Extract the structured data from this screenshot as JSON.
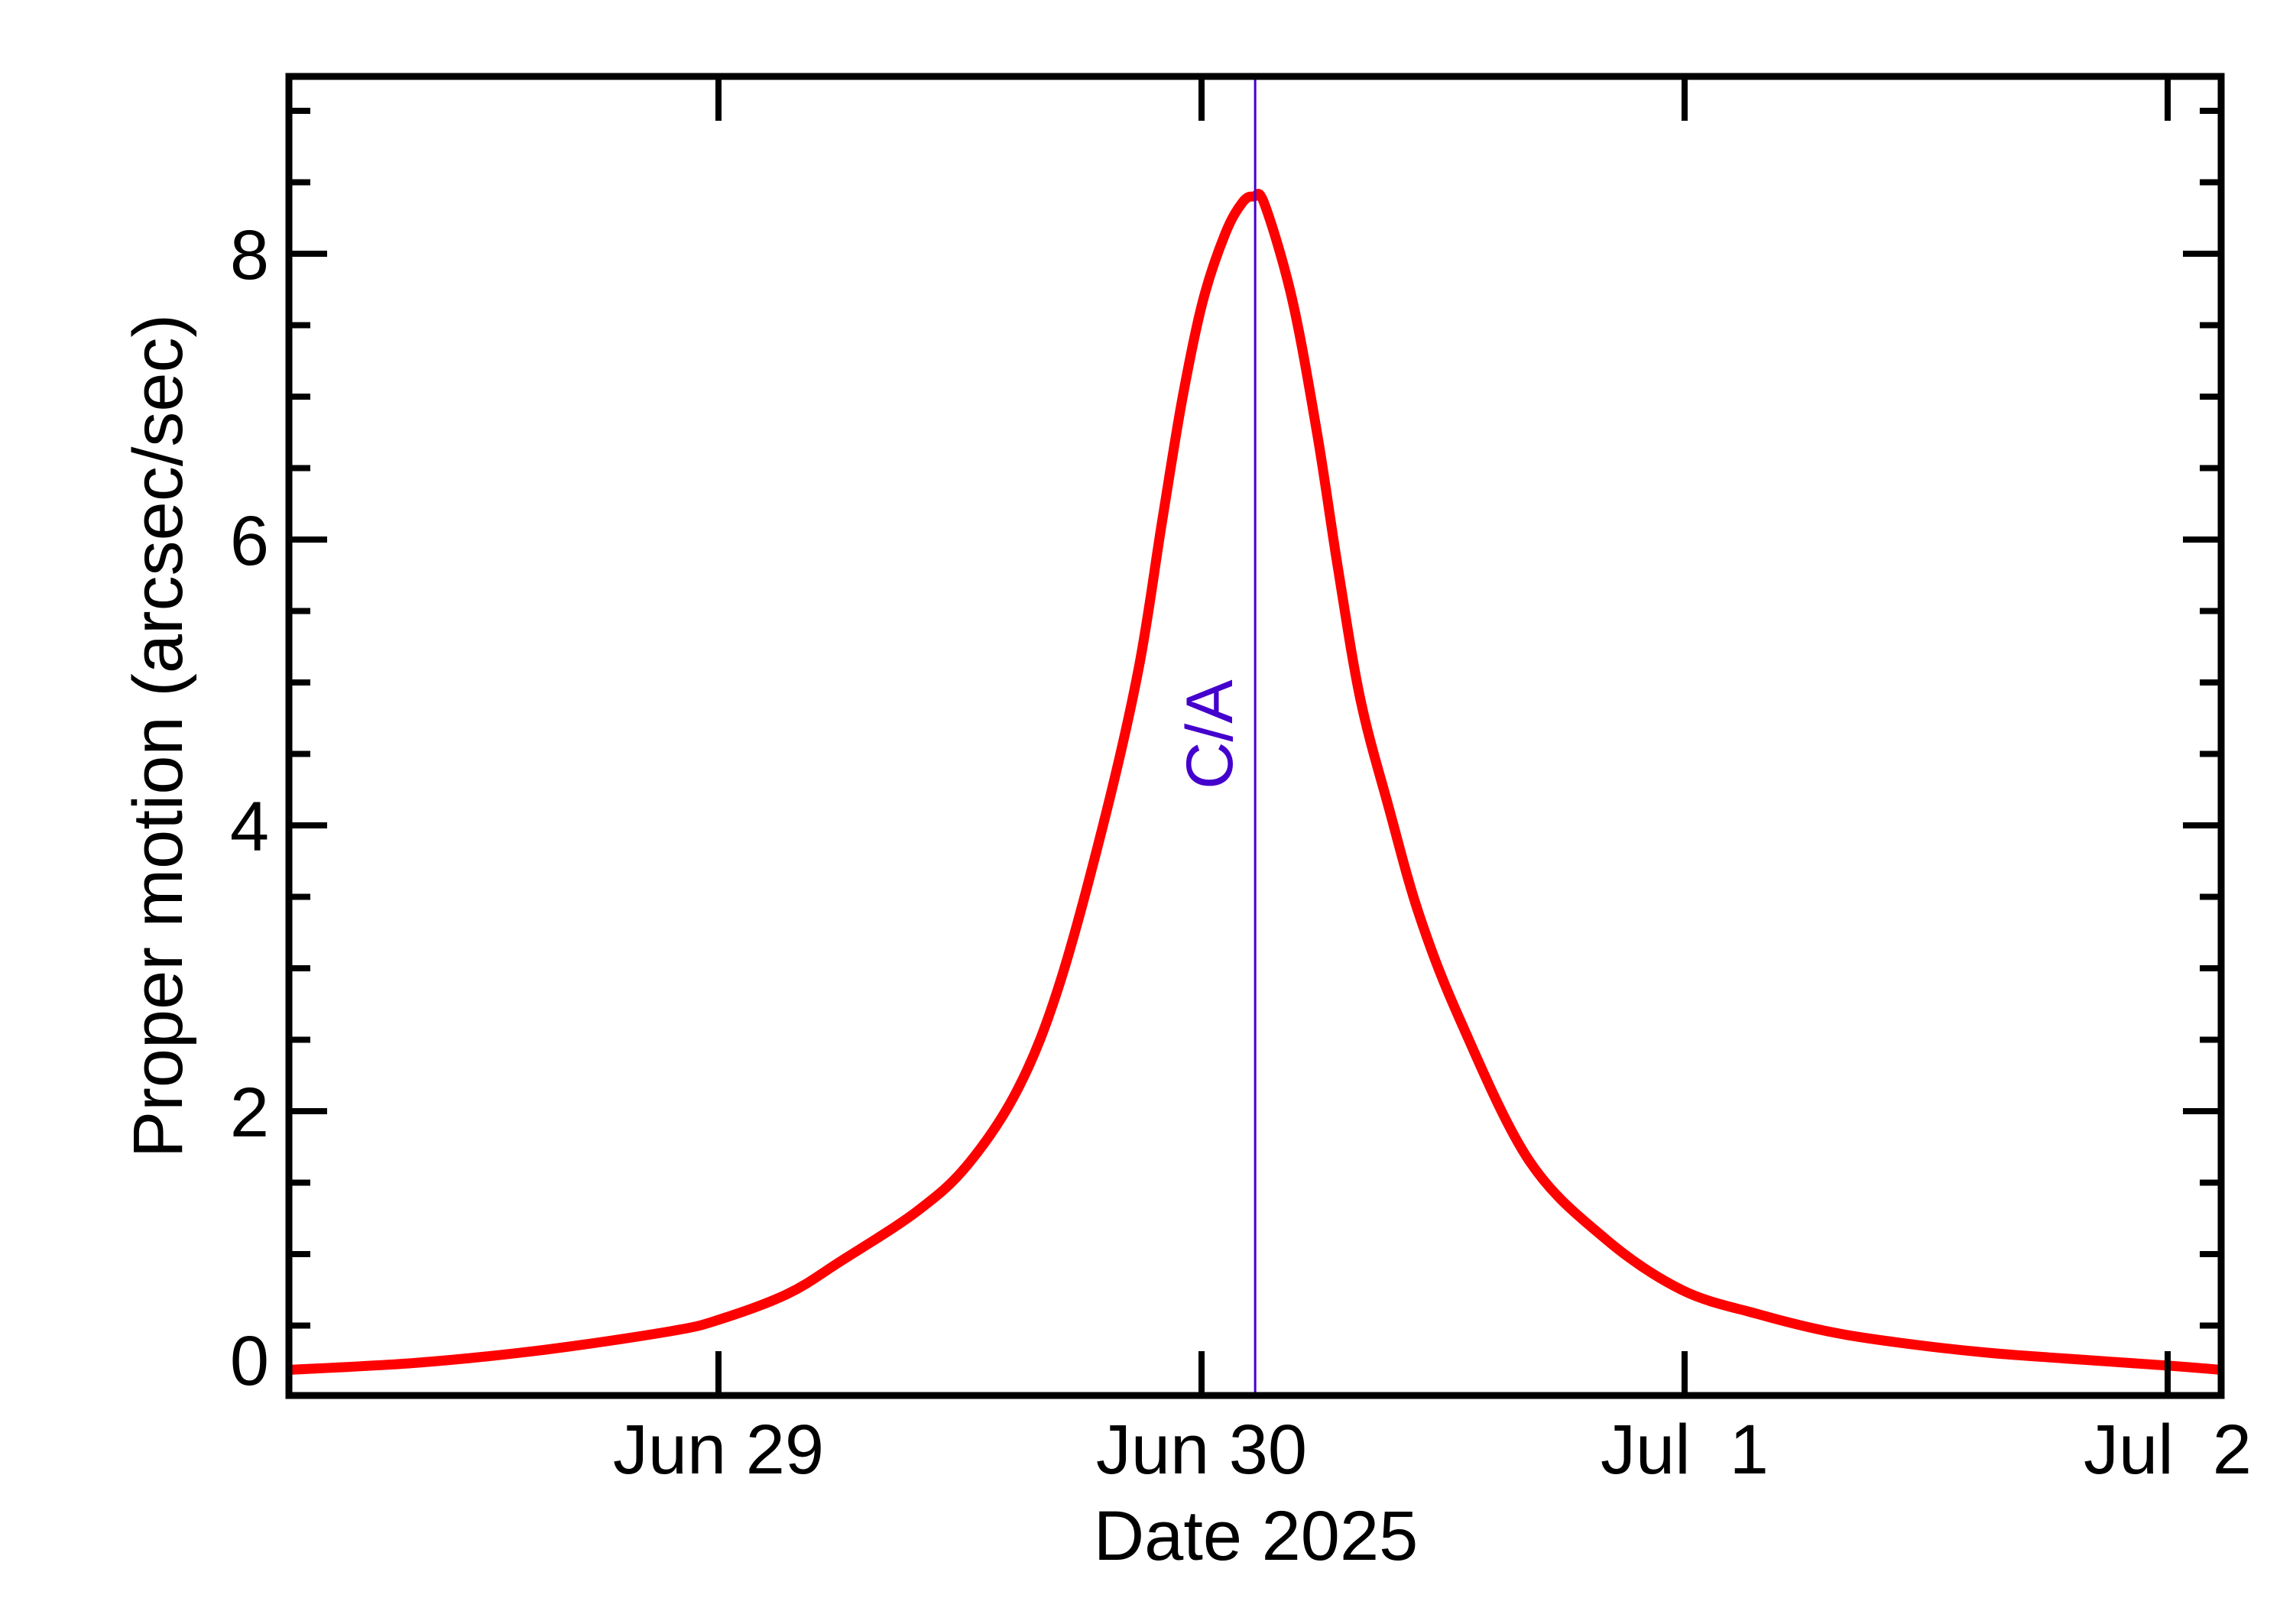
{
  "chart_data": {
    "type": "line",
    "title": "",
    "xlabel": "Date 2025",
    "ylabel": "Proper motion (arcsec/sec)",
    "x_unit": "days since 2025-06-29 00:00",
    "xlim": [
      -0.889,
      3.111
    ],
    "ylim": [
      0,
      9.24
    ],
    "grid": false,
    "legend": null,
    "x_ticks": [
      {
        "value": 0,
        "label": "Jun 29"
      },
      {
        "value": 1,
        "label": "Jun 30"
      },
      {
        "value": 2,
        "label": "Jul  1"
      },
      {
        "value": 3,
        "label": "Jul  2"
      }
    ],
    "y_ticks_major": [
      {
        "value": 0,
        "label": "0"
      },
      {
        "value": 2,
        "label": "2"
      },
      {
        "value": 4,
        "label": "4"
      },
      {
        "value": 6,
        "label": "6"
      },
      {
        "value": 8,
        "label": "8"
      }
    ],
    "y_minor_step": 0.5,
    "x_minor_step": null,
    "annotations": [
      {
        "type": "vline",
        "x": 1.111,
        "label": "C/A",
        "color": "#4400cc"
      }
    ],
    "series": [
      {
        "name": "Proper motion",
        "color": "#ff0000",
        "x": [
          -0.889,
          -0.623,
          -0.361,
          -0.1,
          0.0,
          0.142,
          0.253,
          0.411,
          0.517,
          0.622,
          0.707,
          0.802,
          0.87,
          0.918,
          0.96,
          1.002,
          1.049,
          1.085,
          1.108,
          1.13,
          1.187,
          1.239,
          1.282,
          1.329,
          1.388,
          1.451,
          1.535,
          1.677,
          1.835,
          1.994,
          2.152,
          2.31,
          2.468,
          2.627,
          2.785,
          3.0,
          3.111
        ],
        "values": [
          0.19,
          0.24,
          0.33,
          0.46,
          0.54,
          0.72,
          0.95,
          1.3,
          1.63,
          2.17,
          2.9,
          4.08,
          5.1,
          6.12,
          6.98,
          7.66,
          8.14,
          8.36,
          8.4,
          8.35,
          7.69,
          6.75,
          5.81,
          4.88,
          4.12,
          3.37,
          2.64,
          1.66,
          1.11,
          0.75,
          0.58,
          0.45,
          0.37,
          0.31,
          0.27,
          0.22,
          0.19
        ]
      }
    ]
  },
  "colors": {
    "curve": "#ff0000",
    "ca_line": "#4400cc",
    "axes": "#000000",
    "background": "#ffffff"
  }
}
